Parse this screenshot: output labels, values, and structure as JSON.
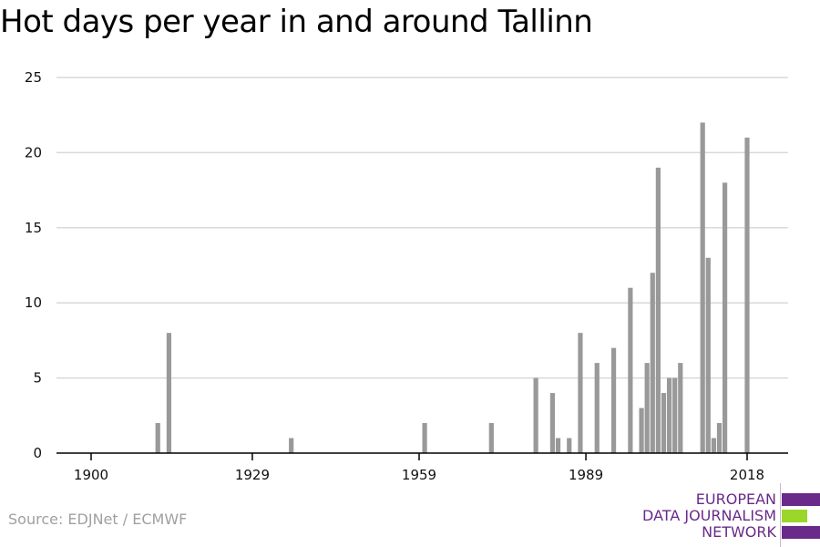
{
  "title": "Hot days per year in and around Tallinn",
  "source": "Source: EDJNet / ECMWF",
  "logo": {
    "line1": "EUROPEAN",
    "line2": "DATA JOURNALISM",
    "line3": "NETWORK",
    "colors": [
      "#6a2a8a",
      "#9bd62a",
      "#6a2a8a"
    ]
  },
  "colors": {
    "bar": "#999999",
    "grid": "#d9d9d9",
    "axis": "#000000"
  },
  "chart_data": {
    "type": "bar",
    "title": "Hot days per year in and around Tallinn",
    "xlabel": "",
    "ylabel": "",
    "xlim": [
      1894,
      2024
    ],
    "ylim": [
      0,
      25
    ],
    "x_ticks": [
      1900,
      1929,
      1959,
      1989,
      2018
    ],
    "y_ticks": [
      0,
      5,
      10,
      15,
      20,
      25
    ],
    "grid": true,
    "legend": "none",
    "x": [
      1912,
      1914,
      1936,
      1960,
      1972,
      1980,
      1983,
      1984,
      1986,
      1988,
      1991,
      1994,
      1997,
      1999,
      2000,
      2001,
      2002,
      2003,
      2004,
      2005,
      2006,
      2010,
      2011,
      2012,
      2013,
      2014,
      2018
    ],
    "values": [
      2,
      8,
      1,
      2,
      2,
      5,
      4,
      1,
      1,
      8,
      6,
      7,
      11,
      3,
      6,
      12,
      19,
      4,
      5,
      5,
      6,
      22,
      13,
      1,
      2,
      18,
      21
    ]
  }
}
